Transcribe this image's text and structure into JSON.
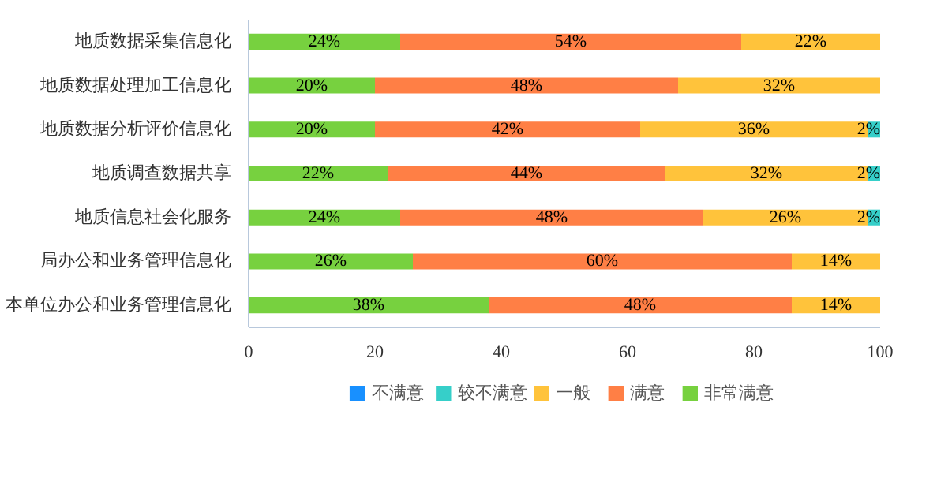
{
  "chart_data": {
    "type": "bar",
    "orientation": "horizontal",
    "stacked": true,
    "categories": [
      "地质数据采集信息化",
      "地质数据处理加工信息化",
      "地质数据分析评价信息化",
      "地质调查数据共享",
      "地质信息社会化服务",
      "局办公和业务管理信息化",
      "本单位办公和业务管理信息化"
    ],
    "series": [
      {
        "name": "非常满意",
        "color": "#77d13f",
        "values": [
          24,
          20,
          20,
          22,
          24,
          26,
          38
        ],
        "value_labels": [
          "24%",
          "20%",
          "20%",
          "22%",
          "24%",
          "26%",
          "38%"
        ]
      },
      {
        "name": "满意",
        "color": "#ff7f45",
        "values": [
          54,
          48,
          42,
          44,
          48,
          60,
          48
        ],
        "value_labels": [
          "54%",
          "48%",
          "42%",
          "44%",
          "48%",
          "60%",
          "48%"
        ]
      },
      {
        "name": "一般",
        "color": "#ffc33b",
        "values": [
          22,
          32,
          36,
          32,
          26,
          14,
          14
        ],
        "value_labels": [
          "22%",
          "32%",
          "36%",
          "32%",
          "26%",
          "14%",
          "14%"
        ]
      },
      {
        "name": "较不满意",
        "color": "#36cfc9",
        "values": [
          0,
          0,
          2,
          2,
          2,
          0,
          0
        ],
        "value_labels": [
          null,
          null,
          "2%",
          "2%",
          "2%",
          null,
          null
        ]
      },
      {
        "name": "不满意",
        "color": "#1890ff",
        "values": [
          0,
          0,
          0,
          0,
          0,
          0,
          0
        ],
        "value_labels": [
          null,
          null,
          null,
          null,
          null,
          null,
          null
        ]
      }
    ],
    "xlim": [
      0,
      100
    ],
    "xticks": [
      0,
      20,
      40,
      60,
      80,
      100
    ],
    "grid": false,
    "legend": "bottom"
  }
}
